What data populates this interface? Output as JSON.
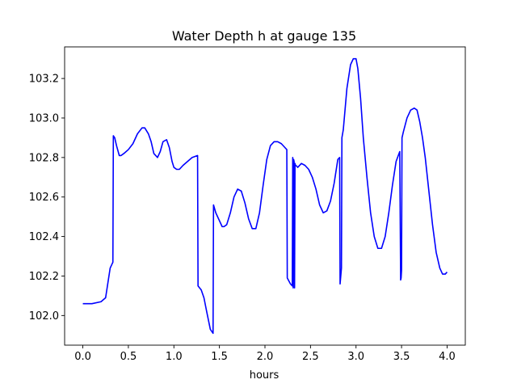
{
  "chart_data": {
    "type": "line",
    "title": "Water Depth h at gauge 135",
    "xlabel": "hours",
    "ylabel": "",
    "xlim": [
      -0.2,
      4.2
    ],
    "ylim": [
      101.85,
      103.36
    ],
    "xticks": [
      0.0,
      0.5,
      1.0,
      1.5,
      2.0,
      2.5,
      3.0,
      3.5,
      4.0
    ],
    "xtick_labels": [
      "0.0",
      "0.5",
      "1.0",
      "1.5",
      "2.0",
      "2.5",
      "3.0",
      "3.5",
      "4.0"
    ],
    "yticks": [
      102.0,
      102.2,
      102.4,
      102.6,
      102.8,
      103.0,
      103.2
    ],
    "ytick_labels": [
      "102.0",
      "102.2",
      "102.4",
      "102.6",
      "102.8",
      "103.0",
      "103.2"
    ],
    "grid": false,
    "legend": "none",
    "series": [
      {
        "color": "#0000ff",
        "x": [
          0.0,
          0.1,
          0.2,
          0.25,
          0.28,
          0.3,
          0.32,
          0.33,
          0.335,
          0.35,
          0.37,
          0.4,
          0.42,
          0.45,
          0.5,
          0.55,
          0.6,
          0.65,
          0.68,
          0.72,
          0.75,
          0.78,
          0.82,
          0.85,
          0.88,
          0.92,
          0.95,
          0.98,
          1.0,
          1.03,
          1.06,
          1.1,
          1.15,
          1.2,
          1.26,
          1.265,
          1.3,
          1.33,
          1.36,
          1.4,
          1.43,
          1.435,
          1.46,
          1.5,
          1.53,
          1.55,
          1.58,
          1.62,
          1.66,
          1.7,
          1.74,
          1.78,
          1.82,
          1.86,
          1.9,
          1.94,
          1.98,
          2.02,
          2.06,
          2.1,
          2.14,
          2.18,
          2.22,
          2.24,
          2.245,
          2.28,
          2.3,
          2.305,
          2.31,
          2.315,
          2.32,
          2.325,
          2.33,
          2.335,
          2.34,
          2.36,
          2.4,
          2.44,
          2.48,
          2.52,
          2.56,
          2.6,
          2.64,
          2.68,
          2.72,
          2.76,
          2.8,
          2.82,
          2.825,
          2.84,
          2.845,
          2.86,
          2.9,
          2.94,
          2.97,
          3.0,
          3.02,
          3.05,
          3.08,
          3.12,
          3.16,
          3.2,
          3.24,
          3.28,
          3.32,
          3.36,
          3.4,
          3.44,
          3.48,
          3.49,
          3.495,
          3.5,
          3.505,
          3.52,
          3.56,
          3.6,
          3.64,
          3.67,
          3.7,
          3.73,
          3.76,
          3.8,
          3.84,
          3.88,
          3.92,
          3.95,
          3.98,
          4.0
        ],
        "y": [
          102.06,
          102.06,
          102.07,
          102.09,
          102.18,
          102.24,
          102.26,
          102.27,
          102.91,
          102.9,
          102.86,
          102.81,
          102.81,
          102.82,
          102.84,
          102.87,
          102.92,
          102.95,
          102.95,
          102.92,
          102.88,
          102.82,
          102.8,
          102.83,
          102.88,
          102.89,
          102.85,
          102.78,
          102.75,
          102.74,
          102.74,
          102.76,
          102.78,
          102.8,
          102.81,
          102.15,
          102.13,
          102.09,
          102.02,
          101.93,
          101.91,
          102.56,
          102.52,
          102.48,
          102.45,
          102.45,
          102.46,
          102.52,
          102.6,
          102.64,
          102.63,
          102.57,
          102.49,
          102.44,
          102.44,
          102.52,
          102.66,
          102.79,
          102.86,
          102.88,
          102.88,
          102.87,
          102.85,
          102.84,
          102.19,
          102.16,
          102.15,
          102.8,
          102.14,
          102.79,
          102.78,
          102.14,
          102.77,
          102.76,
          102.76,
          102.75,
          102.77,
          102.76,
          102.74,
          102.7,
          102.64,
          102.56,
          102.52,
          102.53,
          102.58,
          102.67,
          102.79,
          102.8,
          102.16,
          102.24,
          102.9,
          102.94,
          103.15,
          103.27,
          103.3,
          103.3,
          103.25,
          103.1,
          102.9,
          102.7,
          102.52,
          102.4,
          102.34,
          102.34,
          102.4,
          102.52,
          102.66,
          102.78,
          102.83,
          102.18,
          102.19,
          102.23,
          102.9,
          102.93,
          103.0,
          103.04,
          103.05,
          103.04,
          102.98,
          102.9,
          102.8,
          102.63,
          102.46,
          102.32,
          102.24,
          102.21,
          102.21,
          102.22
        ]
      }
    ]
  }
}
